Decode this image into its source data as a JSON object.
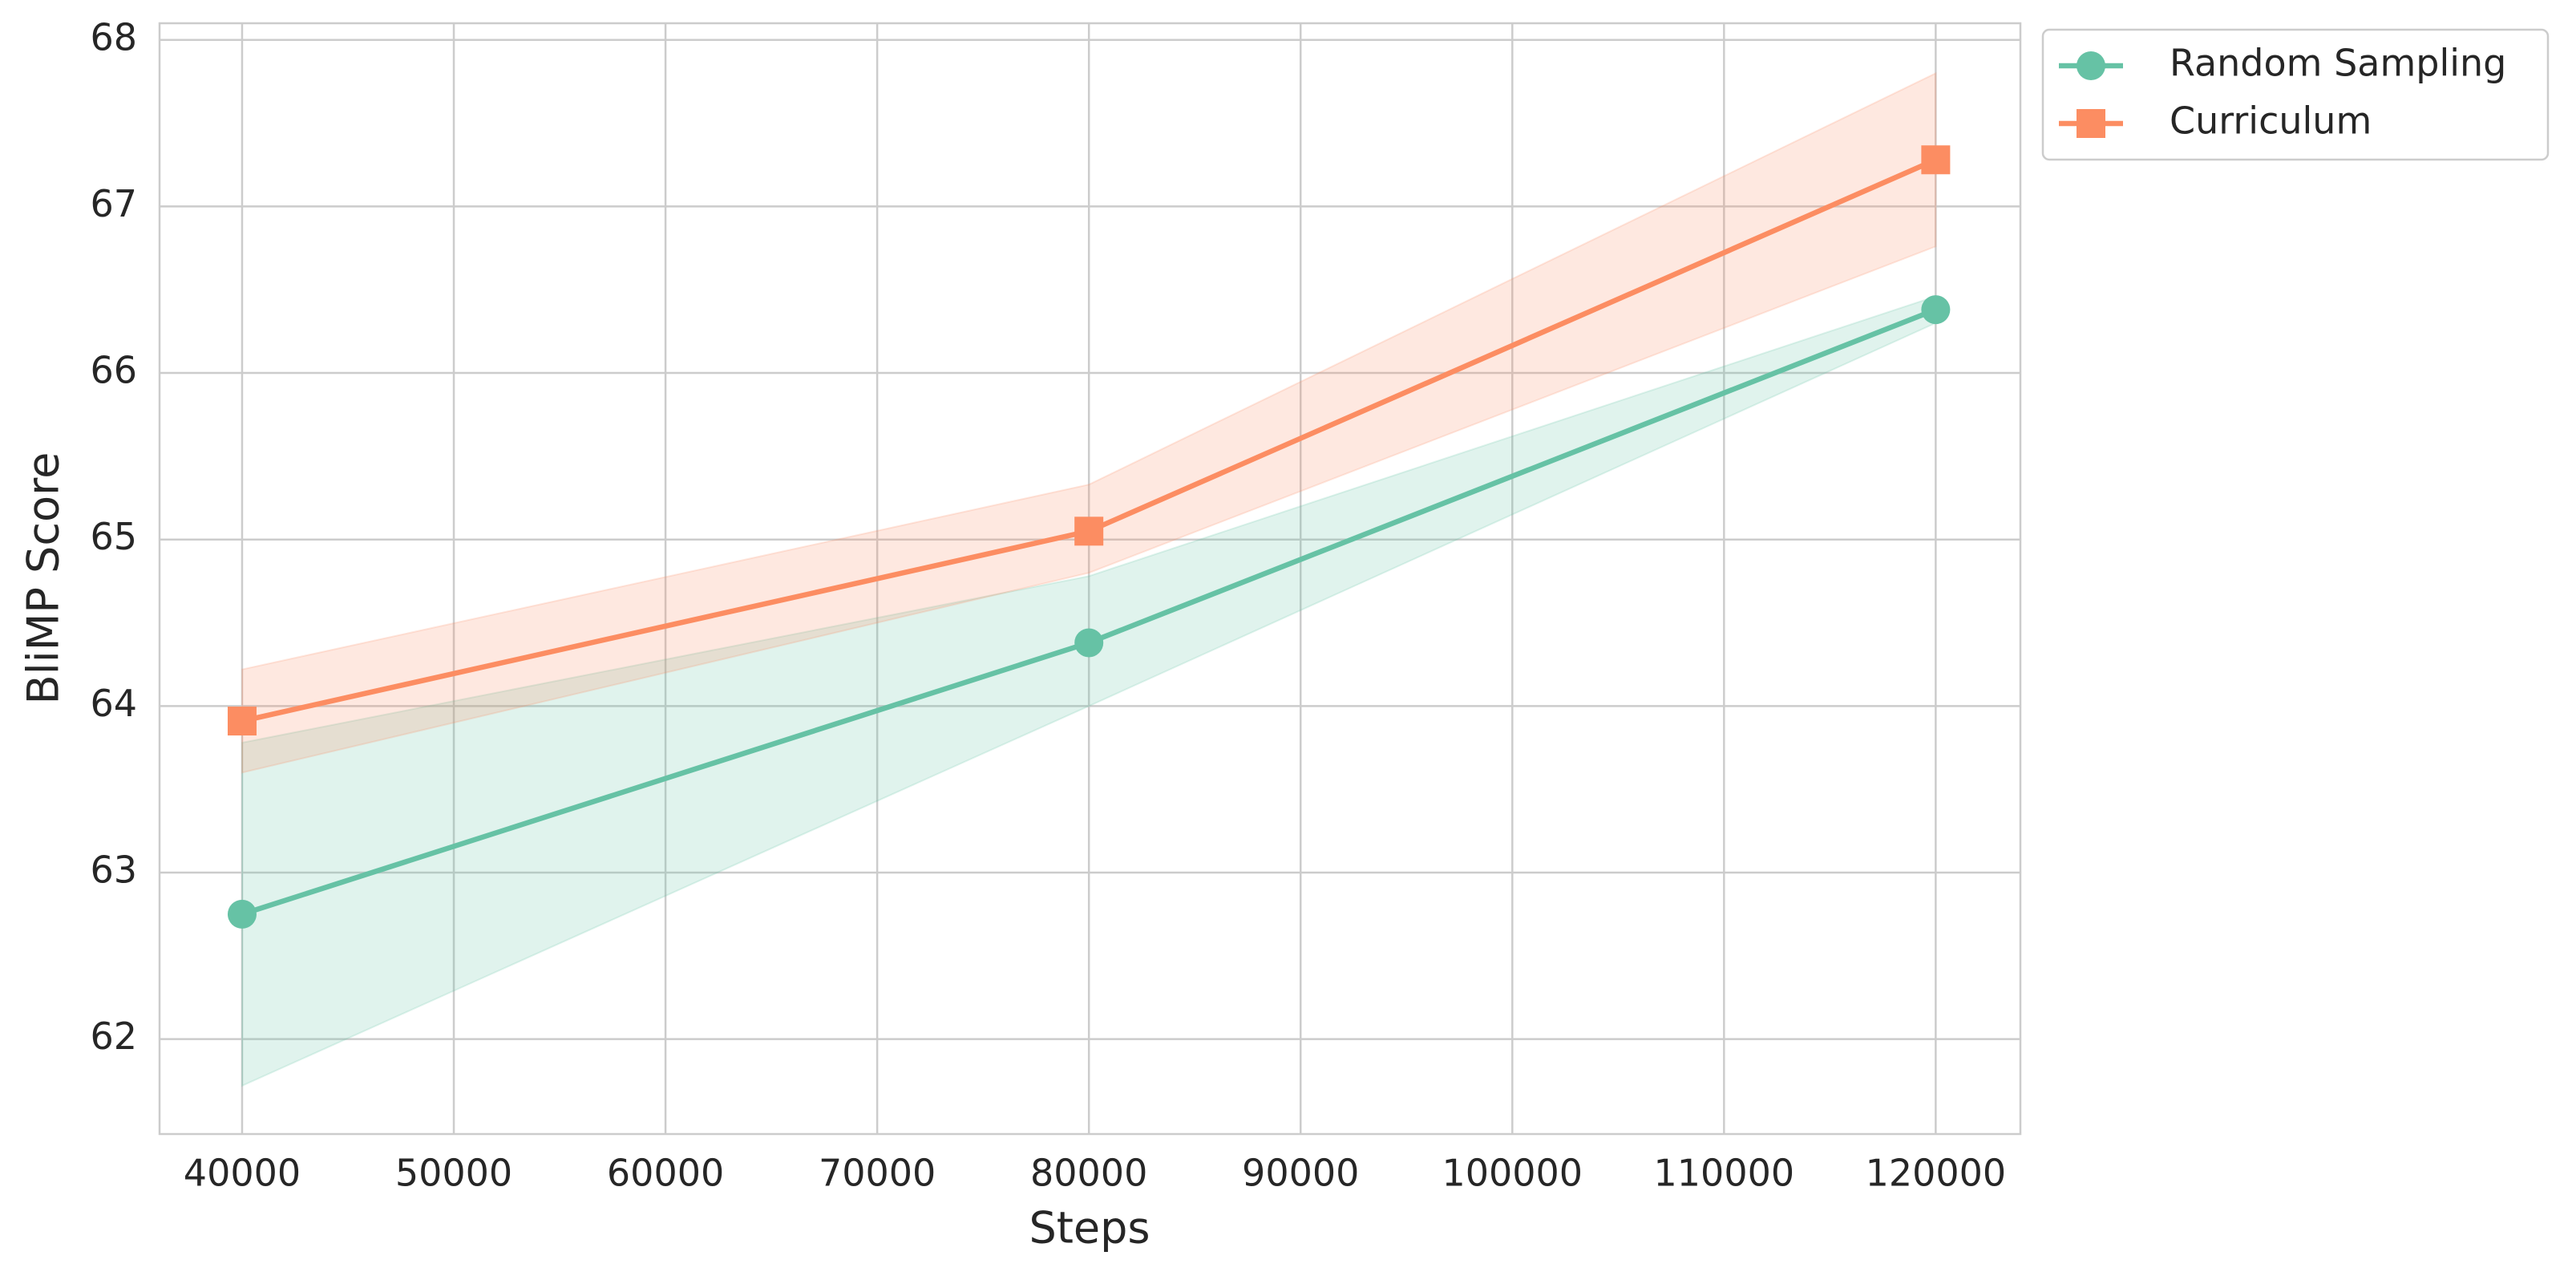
{
  "chart_data": {
    "type": "line",
    "x_label": "Steps",
    "y_label": "BliMP Score",
    "x": [
      40000,
      80000,
      120000
    ],
    "series": [
      {
        "name": "Random Sampling",
        "color": "#66c2a5",
        "marker": "circle",
        "values": [
          62.75,
          64.38,
          66.38
        ],
        "lower": [
          61.72,
          64.0,
          66.3
        ],
        "upper": [
          63.78,
          64.78,
          66.46
        ]
      },
      {
        "name": "Curriculum",
        "color": "#fc8d62",
        "marker": "square",
        "values": [
          63.91,
          65.05,
          67.28
        ],
        "lower": [
          63.6,
          64.8,
          66.76
        ],
        "upper": [
          64.22,
          65.33,
          67.8
        ]
      }
    ],
    "xlim": [
      36100,
      124000
    ],
    "ylim": [
      61.43,
      68.1
    ],
    "xticks": [
      40000,
      50000,
      60000,
      70000,
      80000,
      90000,
      100000,
      110000,
      120000
    ],
    "yticks": [
      62,
      63,
      64,
      65,
      66,
      67,
      68
    ],
    "grid": true,
    "legend": "outside upper right"
  }
}
